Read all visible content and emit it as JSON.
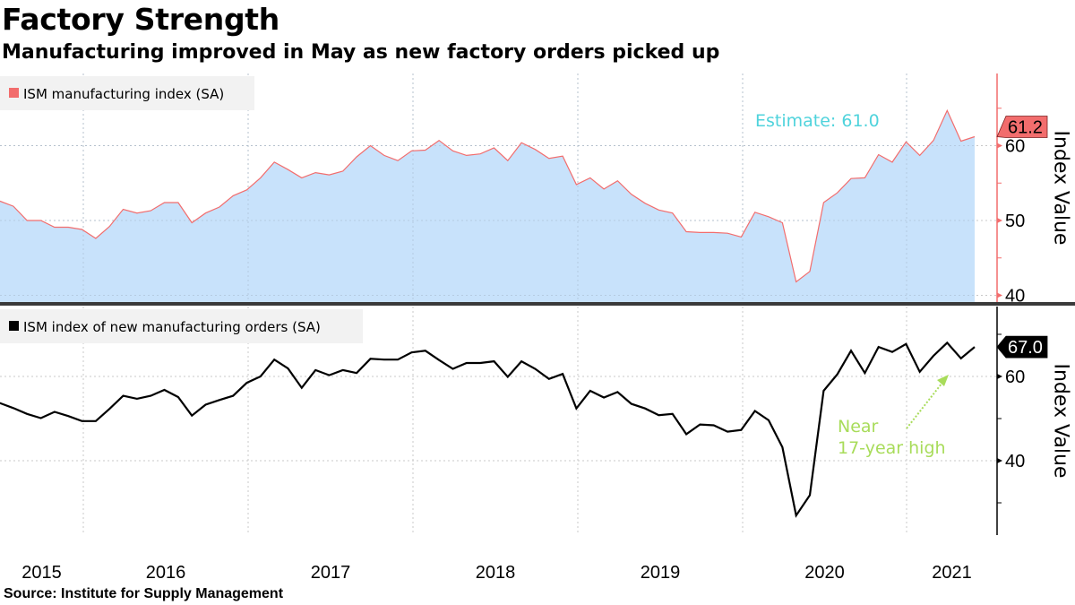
{
  "title": "Factory Strength",
  "subtitle": "Manufacturing improved in May as new factory orders picked up",
  "source": "Source: Institute for Supply Management",
  "chart_data": [
    {
      "type": "area",
      "series": [
        {
          "name": "ISM manufacturing index (SA)",
          "color": "#f26d6d",
          "fill": "#c8e2fb",
          "values": [
            52.6,
            51.9,
            50.0,
            50.0,
            49.1,
            49.1,
            48.8,
            47.6,
            49.2,
            51.5,
            51.0,
            51.3,
            52.4,
            52.4,
            49.7,
            51.0,
            51.8,
            53.3,
            54.1,
            55.7,
            57.8,
            56.8,
            55.7,
            56.4,
            56.1,
            56.6,
            58.5,
            60.0,
            58.7,
            58.0,
            59.3,
            59.4,
            60.7,
            59.3,
            58.7,
            58.9,
            59.7,
            58.0,
            60.4,
            59.5,
            58.3,
            58.6,
            54.8,
            55.7,
            54.2,
            55.3,
            53.5,
            52.3,
            51.4,
            51.0,
            48.5,
            48.4,
            48.4,
            48.3,
            47.8,
            51.1,
            50.5,
            49.7,
            41.8,
            43.2,
            52.4,
            53.7,
            55.6,
            55.7,
            58.8,
            57.8,
            60.5,
            58.7,
            60.7,
            64.7,
            60.6,
            61.2
          ]
        }
      ],
      "x_start": "2015-06",
      "x_end": "2021-05",
      "frequency": "monthly",
      "ylabel": "Index Value",
      "yticks": [
        40,
        50,
        60
      ],
      "ylim": [
        39,
        69
      ],
      "last_value_label": "61.2",
      "annotation": {
        "text": "Estimate: 61.0",
        "color": "#4fd3dc"
      },
      "axis_color": "#f26d6d",
      "grid": true,
      "legend": "top-left"
    },
    {
      "type": "line",
      "series": [
        {
          "name": "ISM index of new manufacturing orders (SA)",
          "color": "#000000",
          "values": [
            53.7,
            52.5,
            51.1,
            50.1,
            51.6,
            50.6,
            49.4,
            49.4,
            52.3,
            55.4,
            54.7,
            55.4,
            56.8,
            55.1,
            50.7,
            53.3,
            54.4,
            55.4,
            58.5,
            60.0,
            64.0,
            61.9,
            57.3,
            61.5,
            60.3,
            61.5,
            60.8,
            64.2,
            64.0,
            64.0,
            65.7,
            66.1,
            63.9,
            61.8,
            63.2,
            63.2,
            63.6,
            59.9,
            63.6,
            61.8,
            59.4,
            60.6,
            52.4,
            56.6,
            55.0,
            56.3,
            53.5,
            52.4,
            50.8,
            51.1,
            46.3,
            48.6,
            48.4,
            46.9,
            47.3,
            51.8,
            49.6,
            43.2,
            27.0,
            31.8,
            56.6,
            60.5,
            66.1,
            60.8,
            67.0,
            65.8,
            67.7,
            61.1,
            64.9,
            68.0,
            64.3,
            67.0
          ]
        }
      ],
      "x_start": "2015-06",
      "x_end": "2021-05",
      "frequency": "monthly",
      "ylabel": "Index Value",
      "yticks": [
        40,
        60
      ],
      "ylim": [
        23,
        74
      ],
      "last_value_label": "67.0",
      "annotation": {
        "line1": "Near",
        "line2": "17-year high",
        "color": "#a8dc5a"
      },
      "axis_color": "#000000",
      "grid": true,
      "legend": "top-left"
    }
  ],
  "x_tick_labels": [
    "2015",
    "2016",
    "2017",
    "2018",
    "2019",
    "2020",
    "2021"
  ]
}
